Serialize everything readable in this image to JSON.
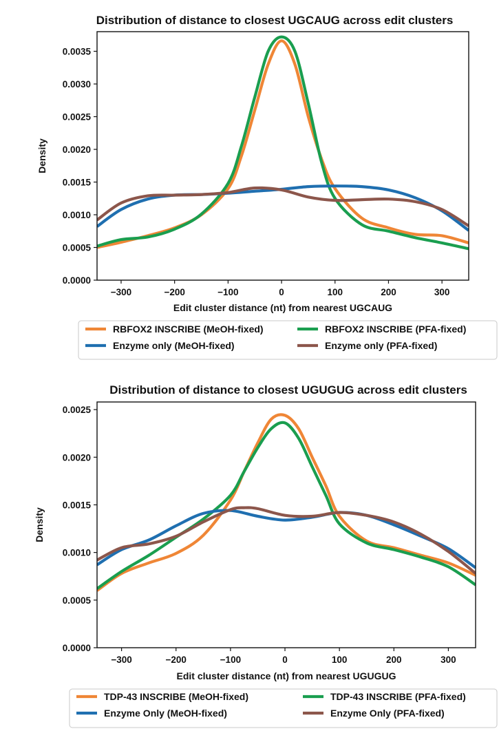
{
  "chart_data": [
    {
      "type": "line",
      "title": "Distribution of distance to closest UGCAUG across edit clusters",
      "xlabel": "Edit cluster distance (nt) from nearest UGCAUG",
      "ylabel": "Density",
      "xlim": [
        -345,
        350
      ],
      "ylim": [
        0,
        0.0038
      ],
      "xticks": [
        -300,
        -200,
        -100,
        0,
        100,
        200,
        300
      ],
      "xtick_labels": [
        "−300",
        "−200",
        "−100",
        "0",
        "100",
        "200",
        "300"
      ],
      "yticks": [
        0,
        0.0005,
        0.001,
        0.0015,
        0.002,
        0.0025,
        0.003,
        0.0035
      ],
      "ytick_labels": [
        "0.0000",
        "0.0005",
        "0.0010",
        "0.0015",
        "0.0020",
        "0.0025",
        "0.0030",
        "0.0035"
      ],
      "legend_position": "below",
      "series": [
        {
          "name": "RBFOX2 INSCRIBE (MeOH-fixed)",
          "color": "#ef8636",
          "x": [
            -345,
            -300,
            -250,
            -200,
            -150,
            -100,
            -75,
            -50,
            -25,
            0,
            25,
            50,
            75,
            100,
            150,
            200,
            250,
            300,
            350
          ],
          "y": [
            0.0005,
            0.00058,
            0.00068,
            0.0008,
            0.001,
            0.0014,
            0.0019,
            0.0026,
            0.0033,
            0.00366,
            0.0033,
            0.0025,
            0.00185,
            0.0014,
            0.00095,
            0.0008,
            0.0007,
            0.00068,
            0.00057
          ]
        },
        {
          "name": "RBFOX2 INSCRIBE (PFA-fixed)",
          "color": "#1a9e4f",
          "x": [
            -345,
            -300,
            -250,
            -200,
            -150,
            -100,
            -75,
            -50,
            -25,
            0,
            25,
            50,
            75,
            100,
            150,
            200,
            250,
            300,
            350
          ],
          "y": [
            0.00052,
            0.00062,
            0.00066,
            0.00078,
            0.00101,
            0.00148,
            0.00205,
            0.0028,
            0.0035,
            0.00372,
            0.0035,
            0.0027,
            0.0018,
            0.00125,
            0.00085,
            0.00075,
            0.00065,
            0.00057,
            0.00048
          ]
        },
        {
          "name": "Enzyme only (MeOH-fixed)",
          "color": "#1f6fb0",
          "x": [
            -345,
            -300,
            -250,
            -200,
            -150,
            -100,
            -50,
            0,
            50,
            100,
            150,
            200,
            250,
            300,
            350
          ],
          "y": [
            0.00082,
            0.00108,
            0.00124,
            0.0013,
            0.00131,
            0.00133,
            0.00136,
            0.00139,
            0.00143,
            0.00144,
            0.00143,
            0.00138,
            0.00126,
            0.00106,
            0.00076
          ]
        },
        {
          "name": "Enzyme only (PFA-fixed)",
          "color": "#8c564b",
          "x": [
            -345,
            -300,
            -250,
            -200,
            -150,
            -100,
            -50,
            0,
            50,
            100,
            150,
            200,
            250,
            300,
            350
          ],
          "y": [
            0.00092,
            0.00118,
            0.00129,
            0.0013,
            0.00131,
            0.00134,
            0.00141,
            0.00138,
            0.00127,
            0.00122,
            0.00123,
            0.00124,
            0.0012,
            0.00108,
            0.00083
          ]
        }
      ]
    },
    {
      "type": "line",
      "title": "Distribution of distance to closest UGUGUG across edit clusters",
      "xlabel": "Edit cluster distance (nt) from nearest UGUGUG",
      "ylabel": "Density",
      "xlim": [
        -345,
        350
      ],
      "ylim": [
        0,
        0.00258
      ],
      "xticks": [
        -300,
        -200,
        -100,
        0,
        100,
        200,
        300
      ],
      "xtick_labels": [
        "−300",
        "−200",
        "−100",
        "0",
        "100",
        "200",
        "300"
      ],
      "yticks": [
        0,
        0.0005,
        0.001,
        0.0015,
        0.002,
        0.0025
      ],
      "ytick_labels": [
        "0.0000",
        "0.0005",
        "0.0010",
        "0.0015",
        "0.0020",
        "0.0025"
      ],
      "legend_position": "below",
      "series": [
        {
          "name": "TDP-43 INSCRIBE (MeOH-fixed)",
          "color": "#ef8636",
          "x": [
            -345,
            -300,
            -250,
            -200,
            -150,
            -100,
            -75,
            -50,
            -25,
            0,
            25,
            50,
            75,
            100,
            150,
            200,
            250,
            300,
            350
          ],
          "y": [
            0.0006,
            0.00078,
            0.00089,
            0.00099,
            0.00118,
            0.00155,
            0.00185,
            0.00215,
            0.0024,
            0.00244,
            0.0023,
            0.002,
            0.0017,
            0.00138,
            0.00112,
            0.00105,
            0.00097,
            0.00089,
            0.00076
          ]
        },
        {
          "name": "TDP-43 INSCRIBE (PFA-fixed)",
          "color": "#1a9e4f",
          "x": [
            -345,
            -300,
            -250,
            -200,
            -150,
            -100,
            -75,
            -50,
            -25,
            0,
            25,
            50,
            75,
            100,
            150,
            200,
            250,
            300,
            350
          ],
          "y": [
            0.00062,
            0.0008,
            0.00097,
            0.00116,
            0.00135,
            0.0016,
            0.00185,
            0.0021,
            0.0023,
            0.00236,
            0.0022,
            0.0019,
            0.0016,
            0.0013,
            0.0011,
            0.00103,
            0.00095,
            0.00085,
            0.00066
          ]
        },
        {
          "name": "Enzyme Only (MeOH-fixed)",
          "color": "#1f6fb0",
          "x": [
            -345,
            -300,
            -250,
            -200,
            -150,
            -100,
            -50,
            0,
            50,
            100,
            150,
            200,
            250,
            300,
            350
          ],
          "y": [
            0.00087,
            0.00103,
            0.00113,
            0.00128,
            0.00141,
            0.00144,
            0.00138,
            0.00134,
            0.00137,
            0.00142,
            0.00139,
            0.00129,
            0.00117,
            0.00104,
            0.00084
          ]
        },
        {
          "name": "Enzyme Only (PFA-fixed)",
          "color": "#8c564b",
          "x": [
            -345,
            -300,
            -250,
            -200,
            -150,
            -100,
            -75,
            -50,
            0,
            50,
            100,
            150,
            200,
            250,
            300,
            350
          ],
          "y": [
            0.00092,
            0.00105,
            0.00109,
            0.00117,
            0.00132,
            0.00145,
            0.00147,
            0.00146,
            0.00139,
            0.00138,
            0.00142,
            0.00139,
            0.00132,
            0.00119,
            0.00101,
            0.00078
          ]
        }
      ]
    }
  ]
}
